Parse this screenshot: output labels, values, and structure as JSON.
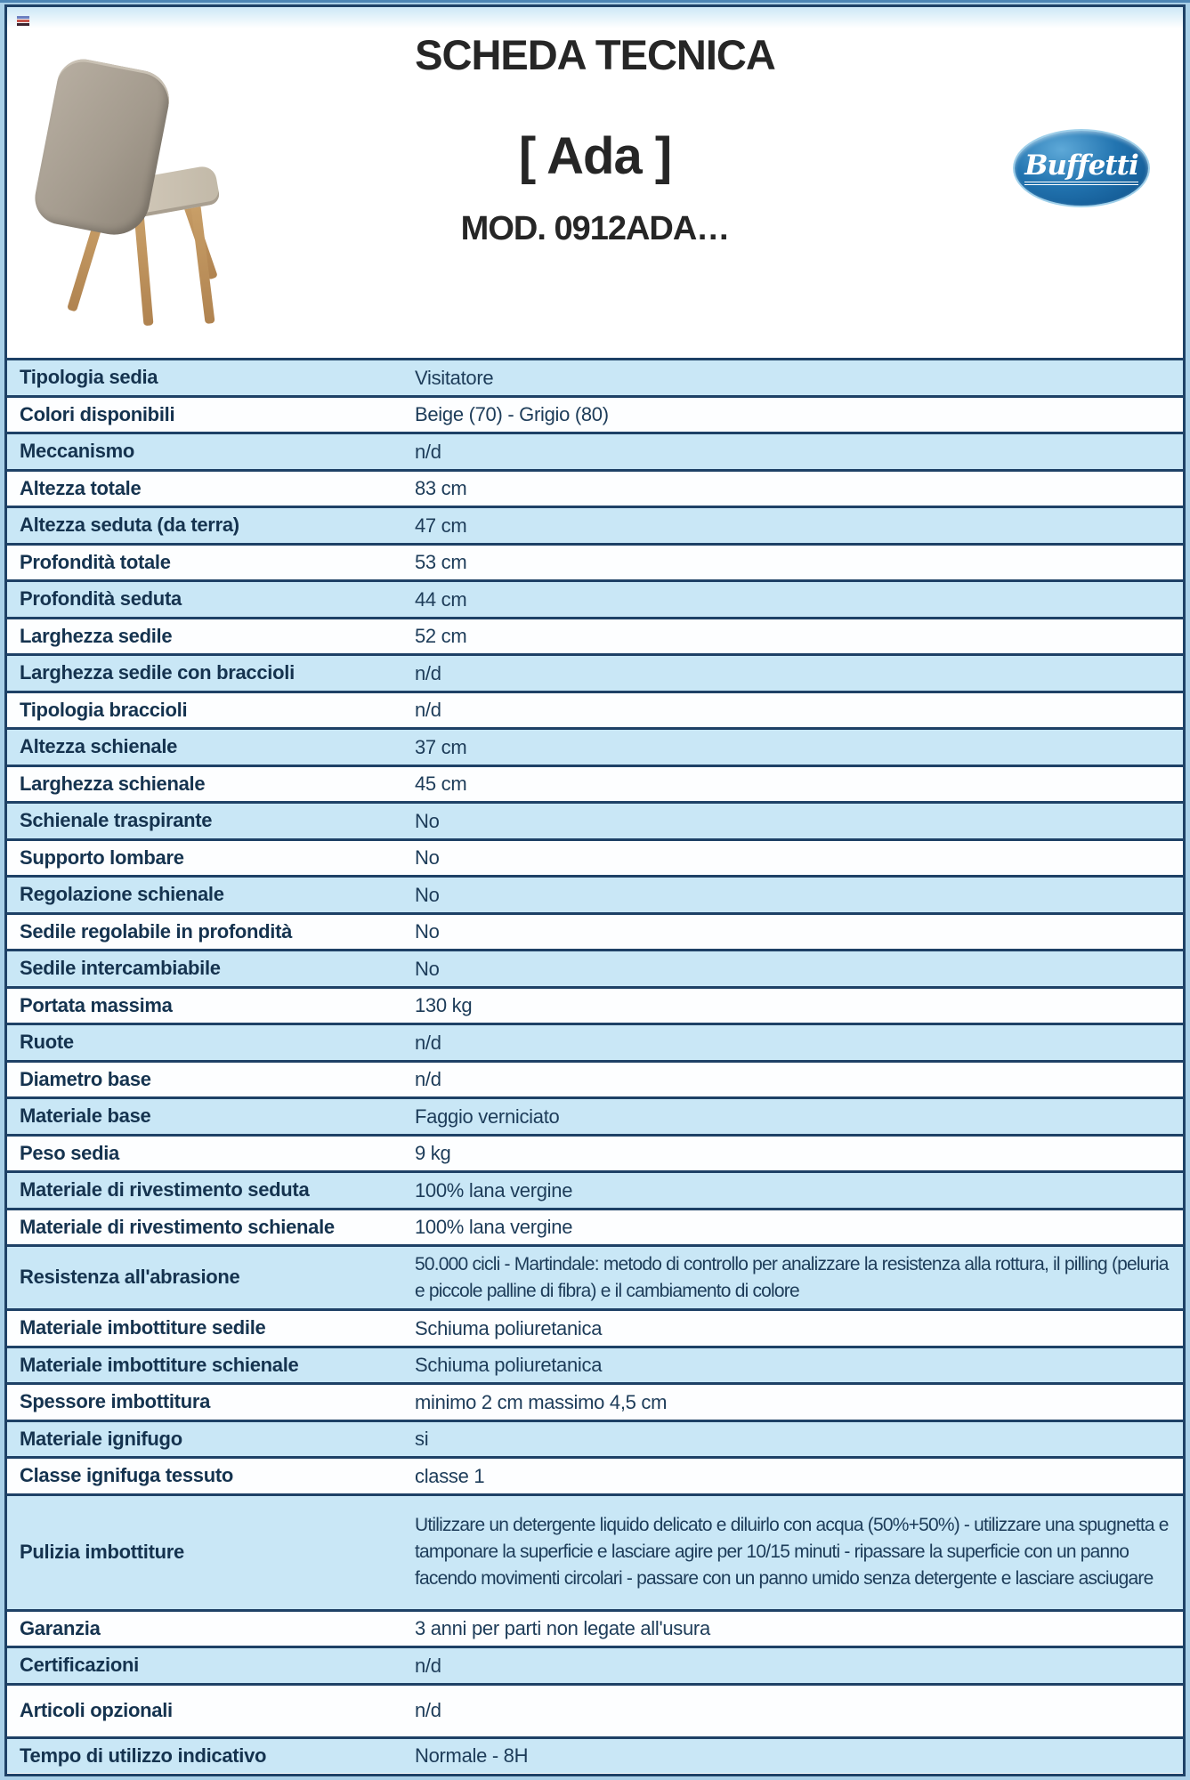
{
  "page": {
    "title": "SCHEDA TECNICA",
    "product_name": "[ Ada ]",
    "model": "MOD. 0912ADA…",
    "brand": "Buffetti"
  },
  "colors": {
    "row_blue": "#c9e7f6",
    "row_white": "#fdfeff",
    "divider_navy": "#1e4166",
    "frame_outer_blue": "#a9d0e8",
    "label_text": "#15334f",
    "value_text": "#1d3c59",
    "logo_blue": "#1565a8"
  },
  "icons": {
    "placeholder_icon": "image-placeholder-icon",
    "placeholder_stripe_colors": [
      "#6b7fc0",
      "#c5524a",
      "#3a2430"
    ]
  },
  "table": {
    "rows": [
      {
        "label": "Tipologia sedia",
        "value": "Visitatore"
      },
      {
        "label": "Colori disponibili",
        "value": "Beige (70) - Grigio (80)"
      },
      {
        "label": "Meccanismo",
        "value": "n/d"
      },
      {
        "label": "Altezza totale",
        "value": "83 cm"
      },
      {
        "label": "Altezza seduta (da terra)",
        "value": "47 cm"
      },
      {
        "label": "Profondità totale",
        "value": "53 cm"
      },
      {
        "label": "Profondità seduta",
        "value": "44 cm"
      },
      {
        "label": "Larghezza sedile",
        "value": "52 cm"
      },
      {
        "label": "Larghezza sedile con braccioli",
        "value": "n/d"
      },
      {
        "label": "Tipologia braccioli",
        "value": "n/d"
      },
      {
        "label": "Altezza schienale",
        "value": "37 cm"
      },
      {
        "label": "Larghezza schienale",
        "value": "45 cm"
      },
      {
        "label": "Schienale traspirante",
        "value": "No"
      },
      {
        "label": "Supporto lombare",
        "value": "No"
      },
      {
        "label": "Regolazione schienale",
        "value": "No"
      },
      {
        "label": "Sedile regolabile in profondità",
        "value": "No"
      },
      {
        "label": "Sedile intercambiabile",
        "value": "No"
      },
      {
        "label": "Portata massima",
        "value": "130 kg"
      },
      {
        "label": "Ruote",
        "value": "n/d"
      },
      {
        "label": "Diametro base",
        "value": "n/d"
      },
      {
        "label": "Materiale base",
        "value": "Faggio verniciato"
      },
      {
        "label": "Peso sedia",
        "value": "9 kg"
      },
      {
        "label": "Materiale di rivestimento seduta",
        "value": "100% lana vergine"
      },
      {
        "label": "Materiale di rivestimento schienale",
        "value": "100% lana vergine"
      },
      {
        "label": "Resistenza all'abrasione",
        "value": "50.000 cicli - Martindale: metodo di controllo per analizzare la resistenza alla rottura, il pilling (peluria e piccole palline di fibra) e il cambiamento di colore"
      },
      {
        "label": "Materiale imbottiture sedile",
        "value": "Schiuma poliuretanica"
      },
      {
        "label": "Materiale imbottiture schienale",
        "value": "Schiuma poliuretanica"
      },
      {
        "label": "Spessore imbottitura",
        "value": "minimo 2 cm massimo 4,5 cm"
      },
      {
        "label": "Materiale ignifugo",
        "value": "si"
      },
      {
        "label": "Classe ignifuga tessuto",
        "value": "classe 1"
      },
      {
        "label": "Pulizia imbottiture",
        "value": "Utilizzare un detergente liquido delicato e diluirlo con acqua (50%+50%) - utilizzare una spugnetta e tamponare la superficie e lasciare agire per 10/15 minuti - ripassare la superficie con un panno facendo movimenti circolari - passare con un panno umido senza detergente e lasciare asciugare"
      },
      {
        "label": "Garanzia",
        "value": "3 anni per parti non legate all'usura"
      },
      {
        "label": "Certificazioni",
        "value": "n/d"
      },
      {
        "label": "Articoli opzionali",
        "value": "n/d"
      },
      {
        "label": "Tempo di utilizzo indicativo",
        "value": "Normale - 8H"
      }
    ]
  }
}
